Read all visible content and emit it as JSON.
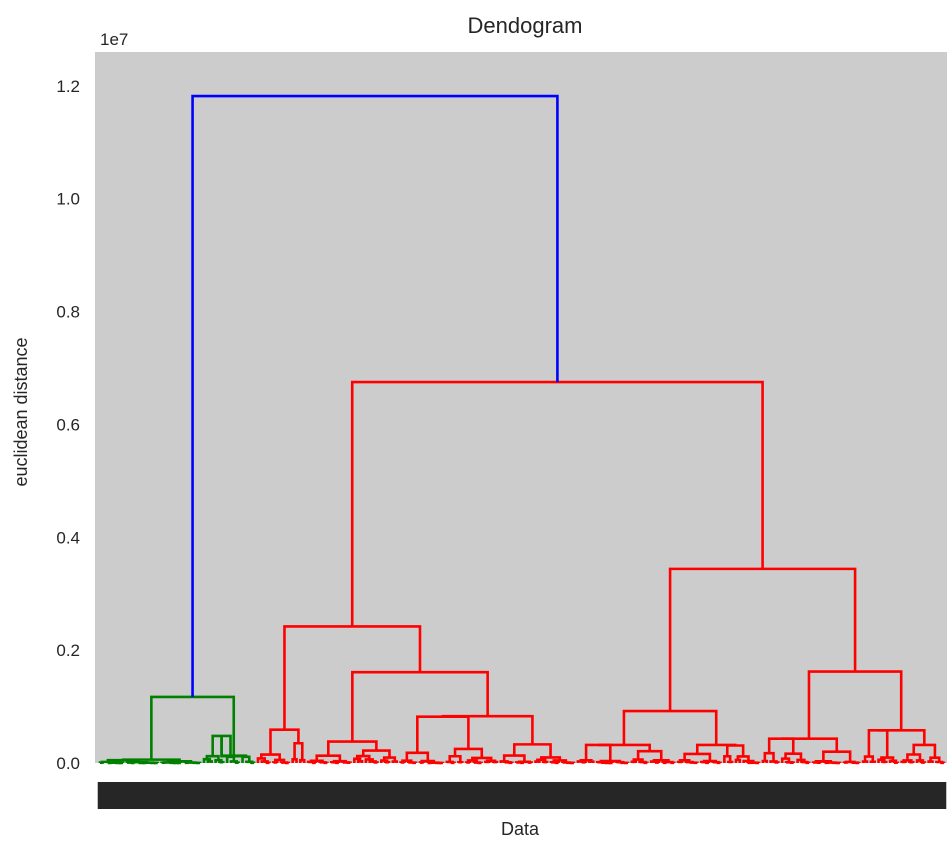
{
  "chart_data": {
    "type": "dendrogram",
    "title": "Dendogram",
    "xlabel": "Data",
    "ylabel": "euclidean distance",
    "y_offset_label": "1e7",
    "ylim": [
      0,
      12600000
    ],
    "yticks": [
      0,
      2000000,
      4000000,
      6000000,
      8000000,
      10000000,
      12000000
    ],
    "ytick_labels": [
      "0.0",
      "0.2",
      "0.4",
      "0.6",
      "0.8",
      "1.0",
      "1.2"
    ],
    "grid": false,
    "leaf_count": 220,
    "colors": {
      "root_link": "#0000ff",
      "cluster_1": "#008000",
      "cluster_2": "#ff0000",
      "plot_background": "#cccccc",
      "leaf_labels": "#262626"
    },
    "clusters": [
      {
        "name": "cluster_1",
        "color": "#008000",
        "merge_height": 1170000,
        "sub_merges": [
          {
            "height": 50000
          },
          {
            "height": 480000
          },
          {
            "height": 120000
          },
          {
            "height": 100000
          }
        ]
      },
      {
        "name": "cluster_2",
        "color": "#ff0000",
        "merge_height": 6750000,
        "sub_merges": [
          {
            "height": 2420000
          },
          {
            "height": 3440000
          },
          {
            "height": 1610000
          },
          {
            "height": 1620000
          },
          {
            "height": 820000
          },
          {
            "height": 920000
          }
        ]
      }
    ],
    "root_merge_height": 11820000
  }
}
